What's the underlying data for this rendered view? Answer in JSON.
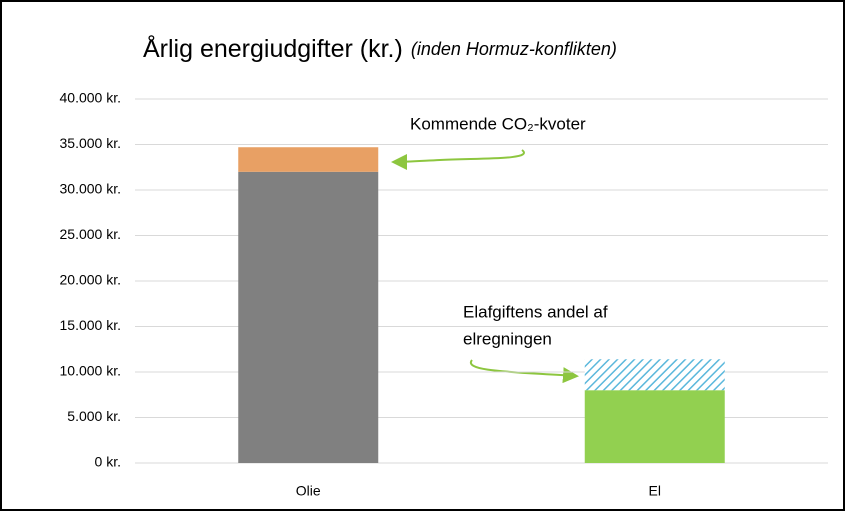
{
  "chart_data": {
    "type": "stacked_bar",
    "title": "Årlig energiudgifter (kr.)",
    "subtitle": "(inden Hormuz-konflikten)",
    "categories": [
      "Olie",
      "El"
    ],
    "series": [
      {
        "colors": [
          "#808080",
          "#92d050"
        ],
        "hatched": [
          false,
          false
        ],
        "values": [
          32000,
          8000
        ]
      },
      {
        "colors": [
          "#e8a064",
          "#5bb8dc"
        ],
        "hatched": [
          false,
          true
        ],
        "values": [
          2700,
          3400
        ]
      }
    ],
    "ylim": [
      0,
      40000
    ],
    "yticks": [
      {
        "value": 0,
        "label": "0 kr."
      },
      {
        "value": 5000,
        "label": "5.000 kr."
      },
      {
        "value": 10000,
        "label": "10.000 kr."
      },
      {
        "value": 15000,
        "label": "15.000 kr."
      },
      {
        "value": 20000,
        "label": "20.000 kr."
      },
      {
        "value": 25000,
        "label": "25.000 kr."
      },
      {
        "value": 30000,
        "label": "30.000 kr."
      },
      {
        "value": 35000,
        "label": "35.000 kr."
      },
      {
        "value": 40000,
        "label": "40.000 kr."
      }
    ],
    "grid": true,
    "annotations": [
      {
        "lines": [
          "Kommende CO₂-kvoter"
        ]
      },
      {
        "lines": [
          "Elafgiftens andel af",
          "elregningen"
        ]
      }
    ]
  }
}
